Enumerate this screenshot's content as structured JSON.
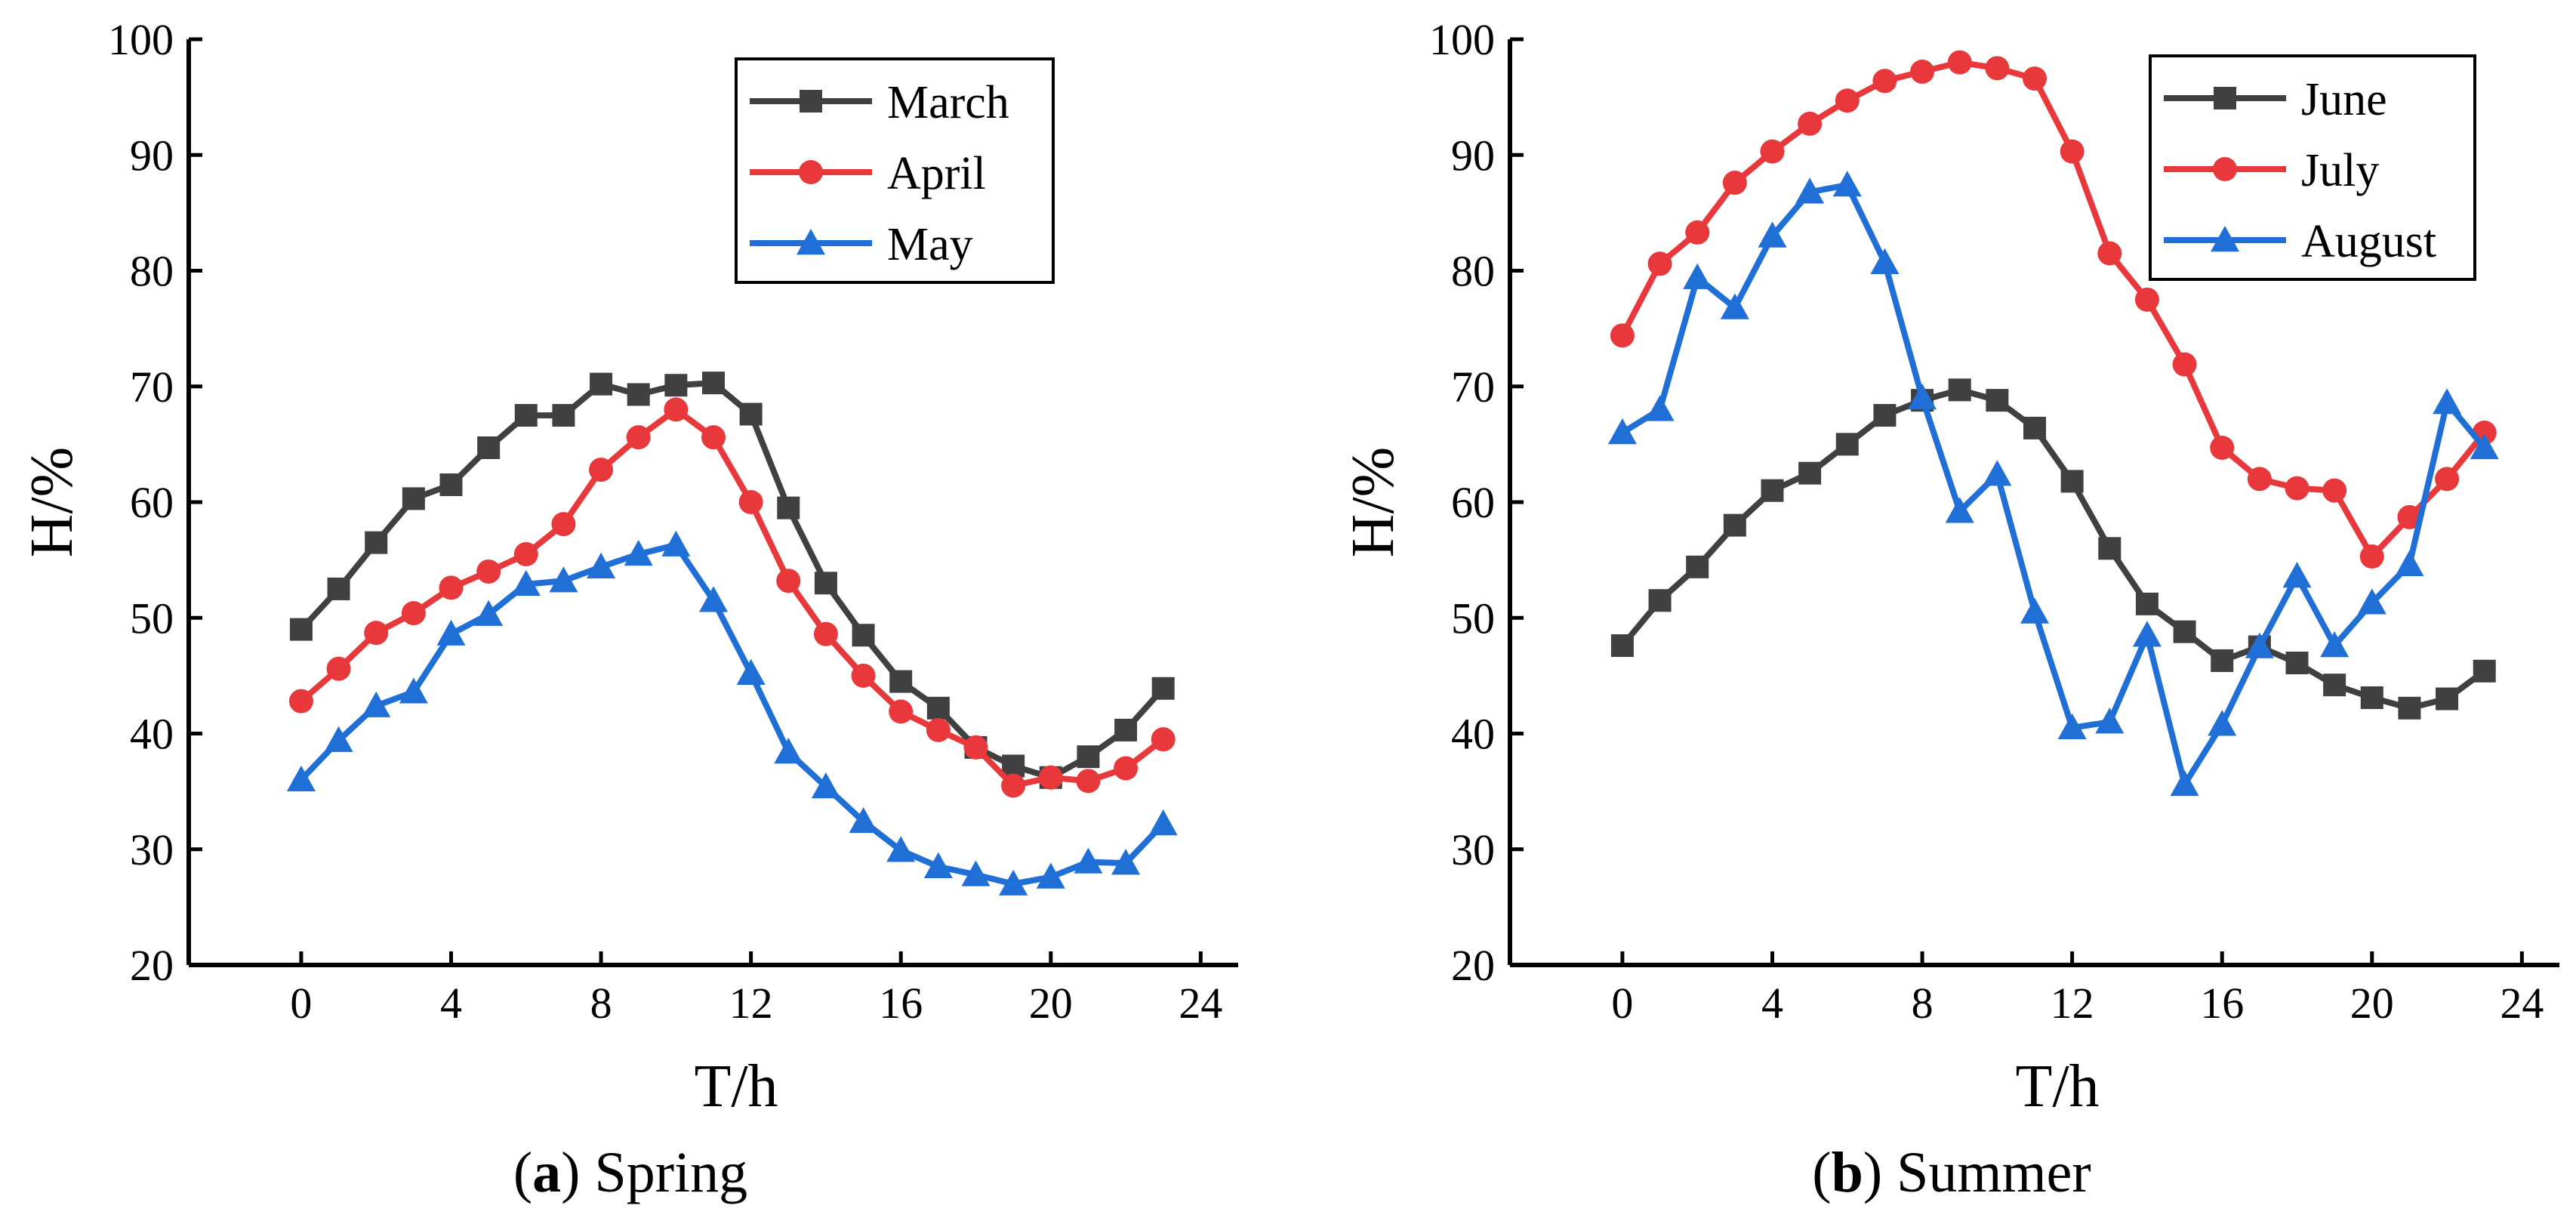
{
  "chart_data": [
    {
      "type": "line",
      "caption_letter": "a",
      "caption_text": "Spring",
      "xlabel": "T/h",
      "ylabel": "H/%",
      "xlim": [
        -3,
        25
      ],
      "ylim": [
        20,
        100
      ],
      "xticks": [
        0,
        4,
        8,
        12,
        16,
        20,
        24
      ],
      "yticks": [
        20,
        30,
        40,
        50,
        60,
        70,
        80,
        90,
        100
      ],
      "legend_position": "top-right",
      "x": [
        0,
        1,
        2,
        3,
        4,
        5,
        6,
        7,
        8,
        9,
        10,
        11,
        12,
        13,
        14,
        15,
        16,
        17,
        18,
        19,
        20,
        21,
        22,
        23
      ],
      "series": [
        {
          "name": "March",
          "color": "#404040",
          "marker": "square",
          "values": [
            49,
            52.5,
            56.5,
            60.3,
            61.5,
            64.7,
            67.5,
            67.5,
            70.2,
            69.3,
            70.1,
            70.3,
            67.6,
            59.5,
            53,
            48.5,
            44.5,
            42.2,
            38.8,
            37.2,
            36.2,
            38,
            40.3,
            43.9
          ]
        },
        {
          "name": "April",
          "color": "#e8383b",
          "marker": "circle",
          "values": [
            42.8,
            45.6,
            48.7,
            50.4,
            52.6,
            54,
            55.5,
            58.1,
            62.8,
            65.6,
            68,
            65.6,
            60,
            53.2,
            48.6,
            45,
            41.9,
            40.3,
            38.8,
            35.5,
            36.2,
            35.9,
            37,
            39.5
          ]
        },
        {
          "name": "May",
          "color": "#1f6fd6",
          "marker": "triangle",
          "values": [
            36,
            39.4,
            42.4,
            43.6,
            48.6,
            50.3,
            52.9,
            53.2,
            54.4,
            55.5,
            56.3,
            51.5,
            45.2,
            38.4,
            35.4,
            32.4,
            29.9,
            28.5,
            27.8,
            27,
            27.6,
            28.9,
            28.8,
            32.2
          ]
        }
      ]
    },
    {
      "type": "line",
      "caption_letter": "b",
      "caption_text": "Summer",
      "xlabel": "T/h",
      "ylabel": "H/%",
      "xlim": [
        -3,
        25
      ],
      "ylim": [
        20,
        100
      ],
      "xticks": [
        0,
        4,
        8,
        12,
        16,
        20,
        24
      ],
      "yticks": [
        20,
        30,
        40,
        50,
        60,
        70,
        80,
        90,
        100
      ],
      "legend_position": "top-right",
      "x": [
        0,
        1,
        2,
        3,
        4,
        5,
        6,
        7,
        8,
        9,
        10,
        11,
        12,
        13,
        14,
        15,
        16,
        17,
        18,
        19,
        20,
        21,
        22,
        23
      ],
      "series": [
        {
          "name": "June",
          "color": "#404040",
          "marker": "square",
          "values": [
            47.6,
            51.5,
            54.4,
            58,
            61,
            62.5,
            65,
            67.5,
            68.8,
            69.7,
            68.8,
            66.4,
            61.8,
            56,
            51.2,
            48.8,
            46.3,
            47.5,
            46.1,
            44.2,
            43.1,
            42.2,
            43,
            45.4
          ]
        },
        {
          "name": "July",
          "color": "#e8383b",
          "marker": "circle",
          "values": [
            74.4,
            80.6,
            83.3,
            87.6,
            90.3,
            92.7,
            94.7,
            96.4,
            97.2,
            98,
            97.5,
            96.6,
            90.3,
            81.5,
            77.5,
            71.9,
            64.7,
            62,
            61.2,
            61,
            55.3,
            58.7,
            62,
            66
          ]
        },
        {
          "name": "August",
          "color": "#1f6fd6",
          "marker": "triangle",
          "values": [
            66,
            68,
            79.4,
            76.8,
            83,
            86.8,
            87.4,
            80.7,
            69,
            59.2,
            62.4,
            50.5,
            40.5,
            41,
            48.5,
            35.6,
            40.8,
            47.5,
            53.6,
            47.6,
            51.3,
            54.6,
            68.6,
            64.7
          ]
        }
      ]
    }
  ]
}
